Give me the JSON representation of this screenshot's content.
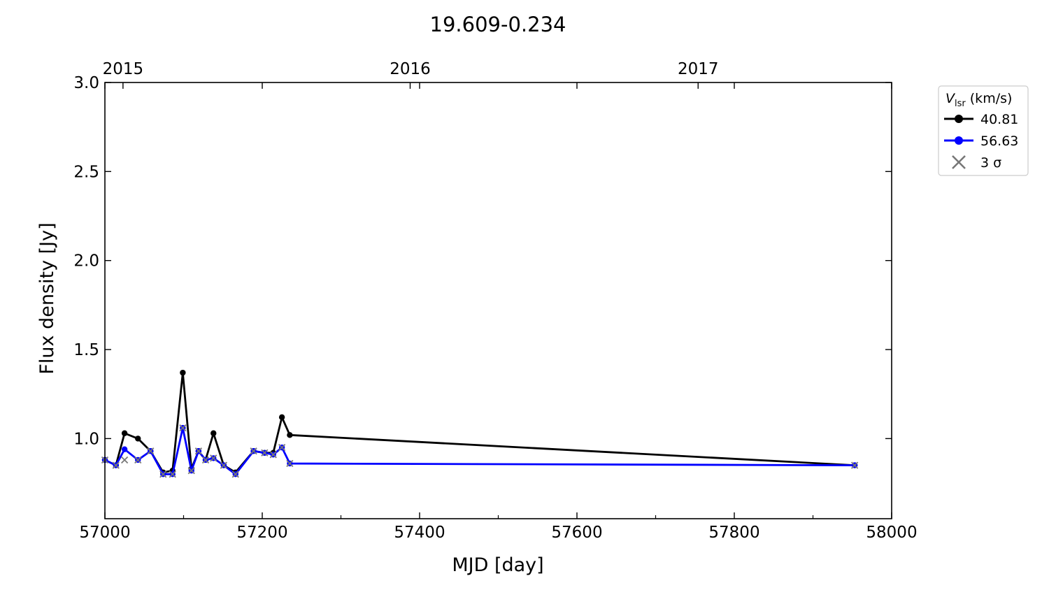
{
  "chart_data": {
    "type": "line",
    "title": "19.609-0.234",
    "xlabel": "MJD [day]",
    "ylabel": "Flux density [Jy]",
    "xlim": [
      57000,
      58000
    ],
    "ylim": [
      0.55,
      3.0
    ],
    "x_ticks": [
      57000,
      57200,
      57400,
      57600,
      57800,
      58000
    ],
    "x_minor_ticks": [
      57100,
      57300,
      57500,
      57700,
      57900
    ],
    "y_ticks": [
      1.0,
      1.5,
      2.0,
      2.5,
      3.0
    ],
    "y_tick_labels": [
      "1.0",
      "1.5",
      "2.0",
      "2.5",
      "3.0"
    ],
    "top_axis": {
      "ticks": [
        {
          "label": "2015",
          "x": 57023
        },
        {
          "label": "2016",
          "x": 57388
        },
        {
          "label": "2017",
          "x": 57754
        }
      ]
    },
    "legend": {
      "title_main": "V",
      "title_sub": "lsr",
      "title_unit": " (km/s)",
      "location": "outside-right-top",
      "sigma_label": "3 σ"
    },
    "colors": {
      "series_black": "#000000",
      "series_blue": "#0000ff",
      "sigma_marker": "#777777"
    },
    "series": [
      {
        "name": "40.81",
        "color": "#000000",
        "x": [
          57000,
          57014,
          57025,
          57042,
          57058,
          57074,
          57086,
          57099,
          57110,
          57119,
          57128,
          57138,
          57151,
          57166,
          57189,
          57203,
          57214,
          57225,
          57235,
          57953
        ],
        "y": [
          0.88,
          0.85,
          1.03,
          1.0,
          0.93,
          0.81,
          0.82,
          1.37,
          0.83,
          0.93,
          0.88,
          1.03,
          0.85,
          0.81,
          0.93,
          0.92,
          0.92,
          1.12,
          1.02,
          0.85
        ]
      },
      {
        "name": "56.63",
        "color": "#0000ff",
        "x": [
          57000,
          57014,
          57025,
          57042,
          57058,
          57074,
          57086,
          57099,
          57110,
          57119,
          57128,
          57138,
          57151,
          57166,
          57189,
          57203,
          57214,
          57225,
          57235,
          57953
        ],
        "y": [
          0.88,
          0.85,
          0.94,
          0.88,
          0.93,
          0.8,
          0.8,
          1.06,
          0.82,
          0.93,
          0.88,
          0.89,
          0.85,
          0.8,
          0.93,
          0.92,
          0.91,
          0.95,
          0.86,
          0.85
        ]
      }
    ],
    "sigma_points": {
      "name": "3 σ",
      "x": [
        57000,
        57014,
        57025,
        57042,
        57058,
        57074,
        57086,
        57099,
        57110,
        57119,
        57128,
        57138,
        57151,
        57166,
        57189,
        57203,
        57214,
        57225,
        57235,
        57953
      ],
      "y": [
        0.88,
        0.85,
        0.88,
        0.88,
        0.93,
        0.8,
        0.8,
        1.06,
        0.82,
        0.93,
        0.88,
        0.89,
        0.85,
        0.8,
        0.93,
        0.92,
        0.91,
        0.95,
        0.86,
        0.85
      ]
    }
  }
}
